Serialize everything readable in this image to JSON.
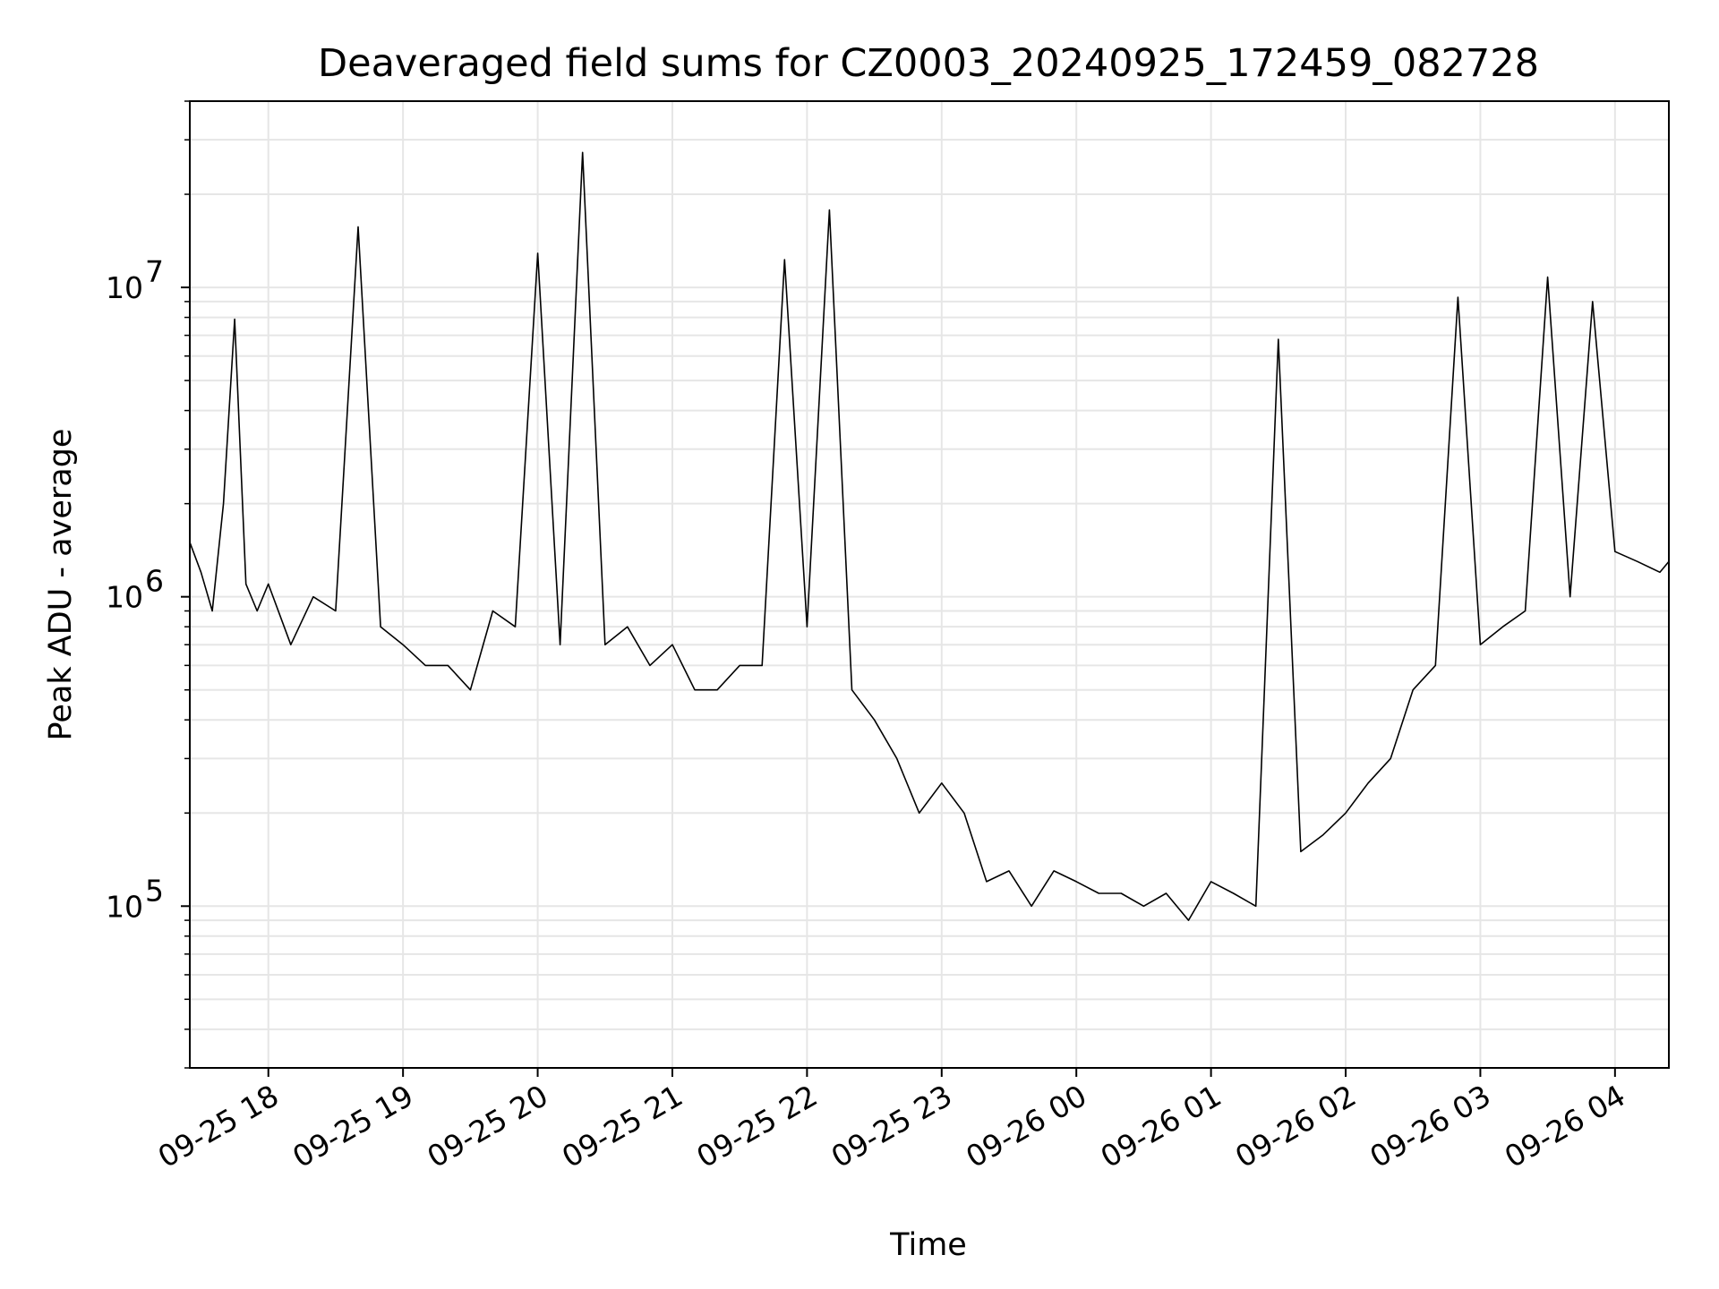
{
  "chart_data": {
    "type": "line",
    "title": "Deaveraged field sums for CZ0003_20240925_172459_082728",
    "xlabel": "Time",
    "ylabel": "Peak ADU - average",
    "yscale": "log",
    "ylim": [
      30000,
      40000000
    ],
    "xlim": [
      "2024-09-25 17:25",
      "2024-09-26 04:24"
    ],
    "grid": true,
    "x_ticks": [
      {
        "value": "2024-09-25 18:00",
        "label": "09-25 18"
      },
      {
        "value": "2024-09-25 19:00",
        "label": "09-25 19"
      },
      {
        "value": "2024-09-25 20:00",
        "label": "09-25 20"
      },
      {
        "value": "2024-09-25 21:00",
        "label": "09-25 21"
      },
      {
        "value": "2024-09-25 22:00",
        "label": "09-25 22"
      },
      {
        "value": "2024-09-25 23:00",
        "label": "09-25 23"
      },
      {
        "value": "2024-09-26 00:00",
        "label": "09-26 00"
      },
      {
        "value": "2024-09-26 01:00",
        "label": "09-26 01"
      },
      {
        "value": "2024-09-26 02:00",
        "label": "09-26 02"
      },
      {
        "value": "2024-09-26 03:00",
        "label": "09-26 03"
      },
      {
        "value": "2024-09-26 04:00",
        "label": "09-26 04"
      }
    ],
    "y_ticks": [
      {
        "value": 100000,
        "base": "10",
        "exp": "5"
      },
      {
        "value": 1000000,
        "base": "10",
        "exp": "6"
      },
      {
        "value": 10000000,
        "base": "10",
        "exp": "7"
      }
    ],
    "line_color": "#000000",
    "grid_color": "#e6e6e6",
    "series": [
      {
        "x": [
          "2024-09-25 17:25",
          "2024-09-25 17:30",
          "2024-09-25 17:35",
          "2024-09-25 17:40",
          "2024-09-25 17:45",
          "2024-09-25 17:50",
          "2024-09-25 17:55",
          "2024-09-25 18:00",
          "2024-09-25 18:10",
          "2024-09-25 18:20",
          "2024-09-25 18:30",
          "2024-09-25 18:40",
          "2024-09-25 18:50",
          "2024-09-25 19:00",
          "2024-09-25 19:10",
          "2024-09-25 19:20",
          "2024-09-25 19:30",
          "2024-09-25 19:40",
          "2024-09-25 19:50",
          "2024-09-25 20:00",
          "2024-09-25 20:10",
          "2024-09-25 20:20",
          "2024-09-25 20:30",
          "2024-09-25 20:40",
          "2024-09-25 20:50",
          "2024-09-25 21:00",
          "2024-09-25 21:10",
          "2024-09-25 21:20",
          "2024-09-25 21:30",
          "2024-09-25 21:40",
          "2024-09-25 21:50",
          "2024-09-25 22:00",
          "2024-09-25 22:10",
          "2024-09-25 22:20",
          "2024-09-25 22:30",
          "2024-09-25 22:40",
          "2024-09-25 22:50",
          "2024-09-25 23:00",
          "2024-09-25 23:10",
          "2024-09-25 23:20",
          "2024-09-25 23:30",
          "2024-09-25 23:40",
          "2024-09-25 23:50",
          "2024-09-26 00:00",
          "2024-09-26 00:10",
          "2024-09-26 00:20",
          "2024-09-26 00:30",
          "2024-09-26 00:40",
          "2024-09-26 00:50",
          "2024-09-26 01:00",
          "2024-09-26 01:10",
          "2024-09-26 01:20",
          "2024-09-26 01:30",
          "2024-09-26 01:40",
          "2024-09-26 01:50",
          "2024-09-26 02:00",
          "2024-09-26 02:10",
          "2024-09-26 02:20",
          "2024-09-26 02:30",
          "2024-09-26 02:40",
          "2024-09-26 02:50",
          "2024-09-26 03:00",
          "2024-09-26 03:10",
          "2024-09-26 03:20",
          "2024-09-26 03:30",
          "2024-09-26 03:40",
          "2024-09-26 03:50",
          "2024-09-26 04:00",
          "2024-09-26 04:10",
          "2024-09-26 04:20",
          "2024-09-26 04:24"
        ],
        "y": [
          1500000,
          1200000,
          900000,
          2000000,
          7900000,
          1100000,
          900000,
          1100000,
          700000,
          1000000,
          900000,
          15700000,
          800000,
          700000,
          600000,
          600000,
          500000,
          900000,
          800000,
          12900000,
          700000,
          27300000,
          700000,
          800000,
          600000,
          700000,
          500000,
          500000,
          600000,
          600000,
          12300000,
          800000,
          17800000,
          500000,
          400000,
          300000,
          200000,
          250000,
          200000,
          120000,
          130000,
          100000,
          130000,
          120000,
          110000,
          110000,
          100000,
          110000,
          90000,
          120000,
          110000,
          100000,
          6800000,
          150000,
          170000,
          200000,
          250000,
          300000,
          500000,
          600000,
          9300000,
          700000,
          800000,
          900000,
          10800000,
          1000000,
          9000000,
          1400000,
          1300000,
          1200000,
          1300000
        ]
      }
    ]
  }
}
